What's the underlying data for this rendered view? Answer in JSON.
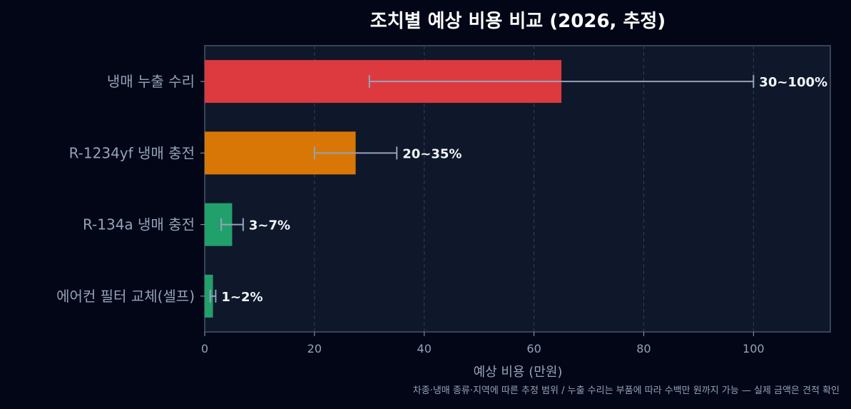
{
  "chart_data": {
    "type": "bar",
    "orientation": "horizontal",
    "title": "조치별 예상 비용 비교 (2026, 추정)",
    "xlabel": "예상 비용 (만원)",
    "ylabel": "",
    "xlim": [
      0,
      114
    ],
    "x_ticks": [
      0,
      20,
      40,
      60,
      80,
      100
    ],
    "x_tick_labels": [
      "0",
      "20",
      "40",
      "60",
      "80",
      "100"
    ],
    "grid": "vertical-dashed",
    "categories": [
      "냉매 누출 수리",
      "R-1234yf 냉매 충전",
      "R-134a 냉매 충전",
      "에어컨 필터 교체(셀프)"
    ],
    "values": [
      65,
      27.5,
      5,
      1.5
    ],
    "error_low": [
      30,
      20,
      3,
      1
    ],
    "error_high": [
      100,
      35,
      7,
      2
    ],
    "data_labels": [
      "30~100%",
      "20~35%",
      "3~7%",
      "1~2%"
    ],
    "colors": [
      "#dc3a3f",
      "#d97706",
      "#22a06b",
      "#22a06b"
    ],
    "footnote": "차종·냉매 종류·지역에 따른 추정 범위 / 누출 수리는 부품에 따라 수백만 원까지 가능 — 실제 금액은 견적 확인"
  }
}
